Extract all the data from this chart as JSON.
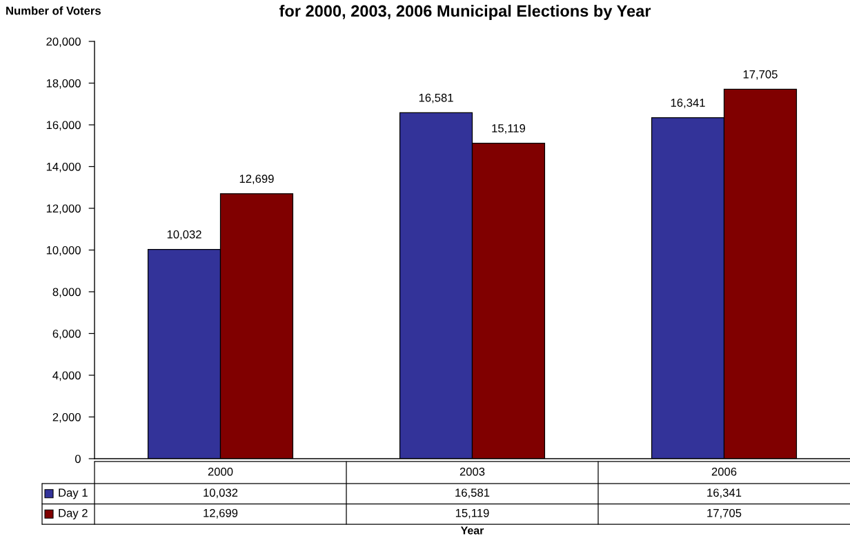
{
  "chart_data": {
    "type": "bar",
    "title": "for 2000, 2003, 2006 Municipal Elections by Year",
    "ylabel": "Number of Voters",
    "xlabel": "Year",
    "categories": [
      "2000",
      "2003",
      "2006"
    ],
    "series": [
      {
        "name": "Day 1",
        "color": "#333399",
        "values": [
          10032,
          16581,
          16341
        ],
        "value_labels": [
          "10,032",
          "16,581",
          "16,341"
        ]
      },
      {
        "name": "Day 2",
        "color": "#800000",
        "values": [
          12699,
          15119,
          17705
        ],
        "value_labels": [
          "12,699",
          "15,119",
          "17,705"
        ]
      }
    ],
    "ylim": [
      0,
      20000
    ],
    "yticks": [
      {
        "value": 0,
        "label": "0"
      },
      {
        "value": 2000,
        "label": "2,000"
      },
      {
        "value": 4000,
        "label": "4,000"
      },
      {
        "value": 6000,
        "label": "6,000"
      },
      {
        "value": 8000,
        "label": "8,000"
      },
      {
        "value": 10000,
        "label": "10,000"
      },
      {
        "value": 12000,
        "label": "12,000"
      },
      {
        "value": 14000,
        "label": "14,000"
      },
      {
        "value": 16000,
        "label": "16,000"
      },
      {
        "value": 18000,
        "label": "18,000"
      },
      {
        "value": 20000,
        "label": "20,000"
      }
    ],
    "legend": "bottom left"
  }
}
